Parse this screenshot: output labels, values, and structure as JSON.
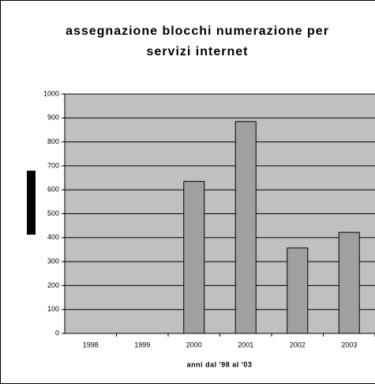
{
  "chart_data": {
    "type": "bar",
    "title": [
      "assegnazione blocchi numerazione per",
      "servizi internet"
    ],
    "x_label": "anni dal '98 al '03",
    "categories": [
      "1998",
      "1999",
      "2000",
      "2001",
      "2002",
      "2003"
    ],
    "values": [
      0,
      0,
      635,
      885,
      357,
      422
    ],
    "color": "#a0a0a0",
    "ylim": [
      0,
      1000
    ],
    "yticks": [
      0,
      100,
      200,
      300,
      400,
      500,
      600,
      700,
      800,
      900,
      1000
    ],
    "grid": true
  }
}
